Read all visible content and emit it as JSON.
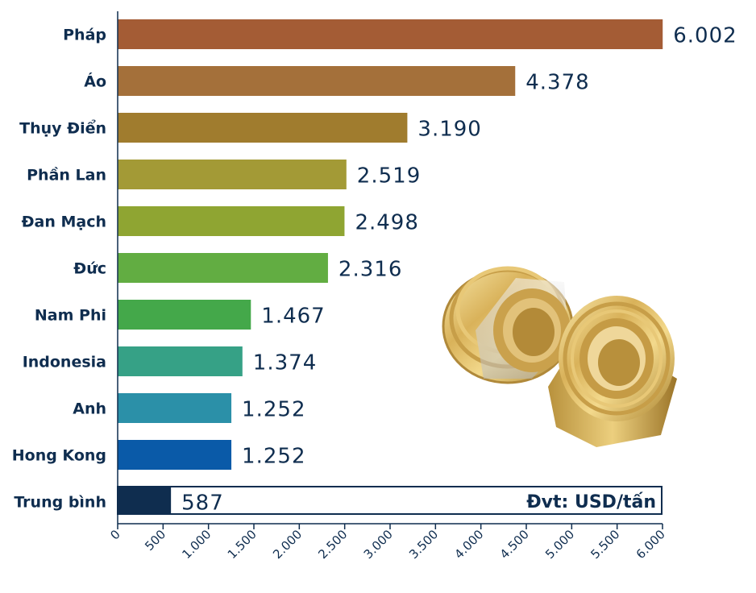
{
  "chart_data": {
    "type": "bar",
    "orientation": "horizontal",
    "unit_note": "Đvt: USD/tấn",
    "categories": [
      "Pháp",
      "Áo",
      "Thụy Điển",
      "Phần Lan",
      "Đan Mạch",
      "Đức",
      "Nam Phi",
      "Indonesia",
      "Anh",
      "Hong Kong",
      "Trung bình"
    ],
    "values": [
      6002,
      4378,
      3190,
      2519,
      2498,
      2316,
      1467,
      1374,
      1252,
      1252,
      587
    ],
    "value_labels": [
      "6.002",
      "4.378",
      "3.190",
      "2.519",
      "2.498",
      "2.316",
      "1.467",
      "1.374",
      "1.252",
      "1.252",
      "587"
    ],
    "colors": [
      "#a45c35",
      "#a4703a",
      "#a07c2e",
      "#a39a36",
      "#8fa532",
      "#62ad42",
      "#44a84a",
      "#36a186",
      "#2b90a8",
      "#0a5aa8",
      "#0f2d4f"
    ],
    "highlight_category": "Trung bình",
    "xlim": [
      0,
      6000
    ],
    "xticks": [
      0,
      500,
      1000,
      1500,
      2000,
      2500,
      3000,
      3500,
      4000,
      4500,
      5000,
      5500,
      6000
    ],
    "xtick_labels": [
      "0",
      "500",
      "1.000",
      "1.500",
      "2.000",
      "2.500",
      "3.000",
      "3.500",
      "4.000",
      "4.500",
      "5.000",
      "5.500",
      "6.000"
    ],
    "grid": false,
    "legend": "none"
  },
  "decoration": {
    "image": "brass-pipe-fittings-photo"
  }
}
